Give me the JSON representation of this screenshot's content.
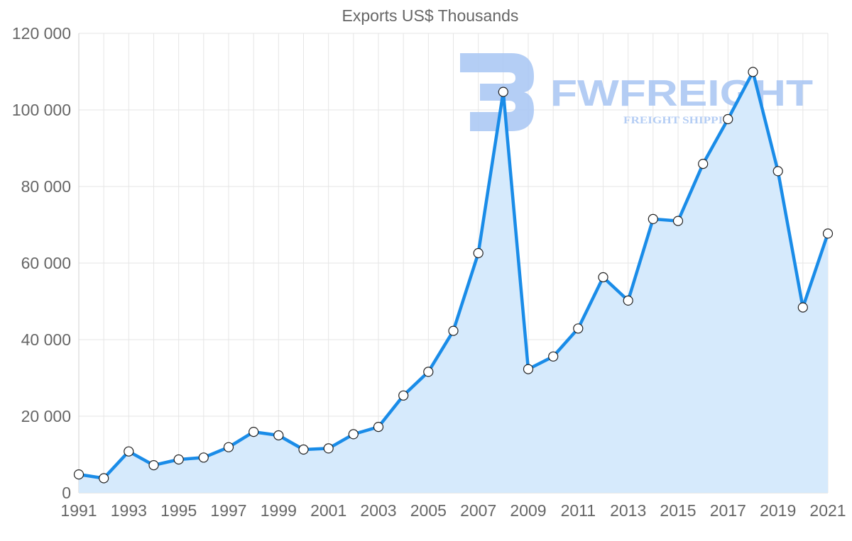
{
  "chart_data": {
    "type": "line",
    "title": "Exports US$ Thousands",
    "xlabel": "",
    "ylabel": "",
    "ylim": [
      0,
      120000
    ],
    "yticks": [
      0,
      20000,
      40000,
      60000,
      80000,
      100000,
      120000
    ],
    "ytick_labels": [
      "0",
      "20 000",
      "40 000",
      "60 000",
      "80 000",
      "100 000",
      "120 000"
    ],
    "x": [
      1991,
      1992,
      1993,
      1994,
      1995,
      1996,
      1997,
      1998,
      1999,
      2000,
      2001,
      2002,
      2003,
      2004,
      2005,
      2006,
      2007,
      2008,
      2009,
      2010,
      2011,
      2012,
      2013,
      2014,
      2015,
      2016,
      2017,
      2018,
      2019,
      2020,
      2021
    ],
    "xtick_labels": [
      "1991",
      "1993",
      "1995",
      "1997",
      "1999",
      "2001",
      "2003",
      "2005",
      "2007",
      "2009",
      "2011",
      "2013",
      "2015",
      "2017",
      "2019",
      "2021"
    ],
    "series": [
      {
        "name": "Exports US$ Thousands",
        "values": [
          4800,
          3800,
          10800,
          7200,
          8700,
          9200,
          11900,
          15900,
          15000,
          11300,
          11600,
          15300,
          17200,
          25400,
          31600,
          42300,
          62600,
          104700,
          32300,
          35600,
          42900,
          56300,
          50200,
          71500,
          71000,
          85900,
          97600,
          109900,
          84000,
          48400,
          67700
        ]
      }
    ],
    "grid": true,
    "legend": "none",
    "colors": {
      "line": "#1a8ce8",
      "area": "#d6eafc",
      "point_fill": "#ffffff",
      "point_stroke": "#222222",
      "grid": "#e6e6e6",
      "text": "#666666"
    }
  },
  "watermark": {
    "brand": "FWFREIGHT",
    "tagline": "FREIGHT SHIPPING",
    "color": "#a7c5f3"
  }
}
